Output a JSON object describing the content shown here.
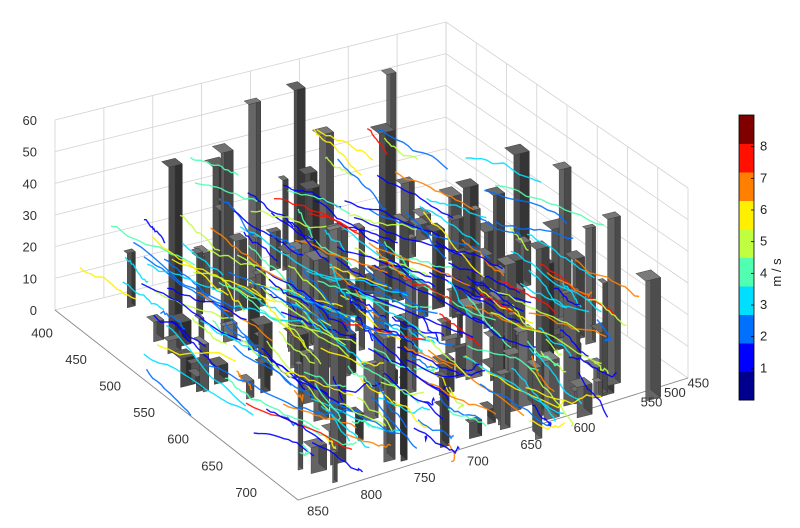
{
  "chart_data": {
    "type": "3d-streamlines",
    "title": "",
    "axes": {
      "z": {
        "ticks": [
          "0",
          "10",
          "20",
          "30",
          "40",
          "50",
          "60"
        ],
        "range": [
          0,
          60
        ]
      },
      "y_left": {
        "ticks": [
          "400",
          "450",
          "500",
          "550",
          "600",
          "650",
          "700"
        ]
      },
      "x_front": {
        "ticks": [
          "850",
          "800",
          "750",
          "700",
          "650",
          "600"
        ]
      },
      "y_right": {
        "ticks": [
          "550",
          "500",
          "450"
        ]
      }
    },
    "grid": true,
    "colorbar": {
      "label": "m / s",
      "ticks": [
        "1",
        "2",
        "3",
        "4",
        "5",
        "6",
        "7",
        "8"
      ],
      "range": [
        0,
        9
      ],
      "colormap": [
        "#00008f",
        "#0000ff",
        "#0070ff",
        "#00dfff",
        "#50ffaf",
        "#c0ff40",
        "#ffef00",
        "#ff8000",
        "#ff1000",
        "#800000"
      ]
    },
    "building_color": "#5a5a5a"
  }
}
